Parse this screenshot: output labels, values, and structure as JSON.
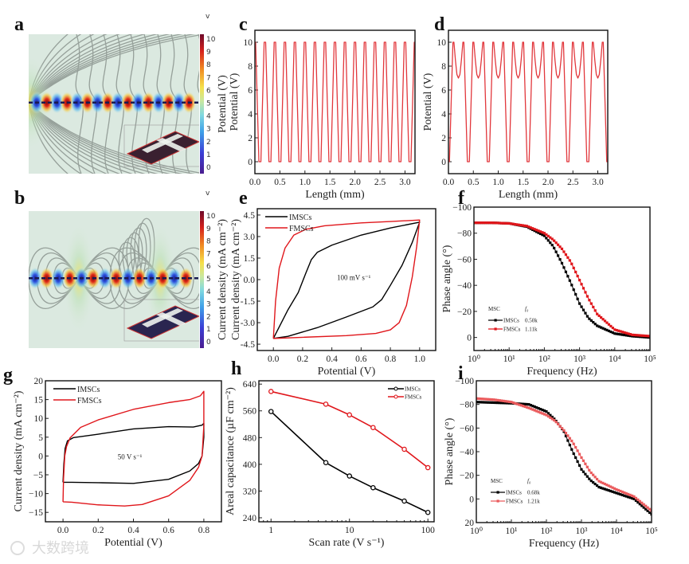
{
  "panel_labels": [
    "a",
    "b",
    "c",
    "d",
    "e",
    "f",
    "g",
    "h",
    "i"
  ],
  "watermark": "大数跨境",
  "colors": {
    "imscs": "#000000",
    "fmscs": "#e0161b",
    "fmscs_light": "#ea5a5c",
    "wave": "#e2373c"
  },
  "chart_data": [
    {
      "id": "a",
      "type": "heatmap",
      "colorbar_unit": "v",
      "colorbar_label": "Potential (V)",
      "colorbar_ticks": [
        "0",
        "1",
        "2",
        "3",
        "4",
        "5",
        "6",
        "7",
        "8",
        "9",
        "10"
      ],
      "colorbar_range": [
        0,
        10
      ]
    },
    {
      "id": "b",
      "type": "heatmap",
      "colorbar_unit": "v",
      "colorbar_label": "Current density (mA cm⁻²)",
      "colorbar_ticks": [
        "0",
        "1",
        "2",
        "3",
        "4",
        "5",
        "6",
        "7",
        "8",
        "9",
        "10"
      ],
      "colorbar_range": [
        0,
        10
      ]
    },
    {
      "id": "c",
      "type": "line",
      "xlabel": "Length (mm)",
      "ylabel": "Potential (V)",
      "xlim": [
        0,
        3.2
      ],
      "ylim": [
        -1,
        11
      ],
      "xticks": [
        0,
        0.5,
        1,
        1.5,
        2,
        2.5,
        3
      ],
      "xtick_labels": [
        "0.0",
        "0.5",
        "1.0",
        "1.5",
        "2.0",
        "2.5",
        "3.0"
      ],
      "yticks": [
        0,
        2,
        4,
        6,
        8,
        10
      ],
      "ytick_labels": [
        "0",
        "2",
        "4",
        "6",
        "8",
        "10"
      ],
      "waveform": {
        "period": 0.2,
        "start": 0,
        "period_profile": [
          [
            -0.015,
            10
          ],
          [
            0.015,
            10
          ],
          [
            0.08,
            0
          ],
          [
            0.12,
            0
          ],
          [
            0.185,
            10
          ]
        ]
      }
    },
    {
      "id": "d",
      "type": "line",
      "xlabel": "Length (mm)",
      "ylabel": "Potential (V)",
      "xlim": [
        0,
        3.2
      ],
      "ylim": [
        -1,
        11
      ],
      "xticks": [
        0,
        0.5,
        1,
        1.5,
        2,
        2.5,
        3
      ],
      "xtick_labels": [
        "0.0",
        "0.5",
        "1.0",
        "1.5",
        "2.0",
        "2.5",
        "3.0"
      ],
      "yticks": [
        0,
        2,
        4,
        6,
        8,
        10
      ],
      "ytick_labels": [
        "0",
        "2",
        "4",
        "6",
        "8",
        "10"
      ],
      "waveform": {
        "period": 0.4,
        "start": 0,
        "period_profile": [
          [
            -0.02,
            0
          ],
          [
            0.02,
            0
          ],
          [
            0.09,
            10
          ],
          [
            0.11,
            10
          ],
          [
            0.14,
            8.5
          ],
          [
            0.17,
            7.3
          ],
          [
            0.2,
            7
          ],
          [
            0.23,
            7.3
          ],
          [
            0.26,
            8.5
          ],
          [
            0.29,
            10
          ],
          [
            0.31,
            10
          ],
          [
            0.38,
            0
          ]
        ]
      }
    },
    {
      "id": "e",
      "type": "line",
      "xlabel": "Potential (V)",
      "ylabel": "Current density (mA cm⁻²)",
      "xlim": [
        -0.11,
        1.11
      ],
      "ylim": [
        -4.94,
        4.94
      ],
      "xticks": [
        0,
        0.2,
        0.4,
        0.6,
        0.8,
        1.0
      ],
      "xtick_labels": [
        "0.0",
        "0.2",
        "0.4",
        "0.6",
        "0.8",
        "1.0"
      ],
      "yticks": [
        -4.5,
        -3,
        -1.5,
        0,
        1.5,
        3,
        4.5
      ],
      "ytick_labels": [
        "-4.5",
        "-3.0",
        "-1.5",
        "0.0",
        "1.5",
        "3.0",
        "4.5"
      ],
      "annotation": "100 mV s⁻¹",
      "legend": "top-left",
      "series": [
        {
          "name": "IMSCs",
          "color": "#000000",
          "points": [
            [
              0,
              -4.1
            ],
            [
              0.05,
              -3.1
            ],
            [
              0.1,
              -2.1
            ],
            [
              0.17,
              -0.9
            ],
            [
              0.22,
              0.4
            ],
            [
              0.26,
              1.4
            ],
            [
              0.3,
              1.9
            ],
            [
              0.4,
              2.4
            ],
            [
              0.6,
              3.1
            ],
            [
              0.8,
              3.6
            ],
            [
              1.0,
              4.0
            ],
            [
              0.95,
              2.6
            ],
            [
              0.88,
              1.0
            ],
            [
              0.8,
              -0.4
            ],
            [
              0.74,
              -1.4
            ],
            [
              0.68,
              -1.9
            ],
            [
              0.5,
              -2.6
            ],
            [
              0.3,
              -3.35
            ],
            [
              0.1,
              -3.95
            ],
            [
              0,
              -4.1
            ]
          ]
        },
        {
          "name": "FMSCs",
          "color": "#e0161b",
          "points": [
            [
              0,
              -4.1
            ],
            [
              0.015,
              -1.5
            ],
            [
              0.04,
              0.8
            ],
            [
              0.08,
              2.2
            ],
            [
              0.14,
              3.1
            ],
            [
              0.22,
              3.5
            ],
            [
              0.35,
              3.75
            ],
            [
              0.6,
              3.95
            ],
            [
              0.8,
              4.05
            ],
            [
              1.0,
              4.15
            ],
            [
              0.98,
              2.3
            ],
            [
              0.95,
              0.2
            ],
            [
              0.91,
              -1.8
            ],
            [
              0.86,
              -3.0
            ],
            [
              0.8,
              -3.5
            ],
            [
              0.7,
              -3.75
            ],
            [
              0.5,
              -3.9
            ],
            [
              0.2,
              -4.02
            ],
            [
              0,
              -4.1
            ]
          ]
        }
      ]
    },
    {
      "id": "f",
      "type": "scatter",
      "xlabel": "Frequency (Hz)",
      "ylabel": "Phase angle (°)",
      "xscale": "log",
      "xlim": [
        1,
        100000
      ],
      "ylim": [
        10,
        -100
      ],
      "xticks": [
        1,
        10,
        100,
        1000,
        10000,
        100000
      ],
      "xtick_labels": [
        "10⁰",
        "10¹",
        "10²",
        "10³",
        "10⁴",
        "10⁵"
      ],
      "yticks": [
        -100,
        -80,
        -60,
        -40,
        -20,
        0
      ],
      "ytick_labels": [
        "−100",
        "−80",
        "−60",
        "−40",
        "−20",
        "0"
      ],
      "legend_title": "MSC",
      "legend_col": "f₀",
      "legend": "bottom-left",
      "x": [
        1,
        3.16,
        10,
        31.6,
        100,
        178,
        316,
        562,
        1000,
        1778,
        3162,
        10000,
        31623,
        100000
      ],
      "series": [
        {
          "name": "IMSCs",
          "f0": "0.50k",
          "color": "#000000",
          "values": [
            -88,
            -88,
            -87.5,
            -85,
            -78,
            -70,
            -57,
            -42,
            -26,
            -15,
            -9,
            -3,
            -1,
            0
          ]
        },
        {
          "name": "FMSCs",
          "f0": "1.11k",
          "color": "#e0161b",
          "values": [
            -88,
            -88,
            -87.5,
            -85.5,
            -80,
            -75,
            -68,
            -58,
            -44,
            -30,
            -18,
            -6,
            -2,
            -1
          ]
        }
      ]
    },
    {
      "id": "g",
      "type": "line",
      "xlabel": "Potential (V)",
      "ylabel": "Current density (mA cm⁻²)",
      "xlim": [
        -0.1,
        0.9
      ],
      "ylim": [
        -17.5,
        20
      ],
      "xticks": [
        0,
        0.2,
        0.4,
        0.6,
        0.8
      ],
      "xtick_labels": [
        "0.0",
        "0.2",
        "0.4",
        "0.6",
        "0.8"
      ],
      "yticks": [
        -15,
        -10,
        -5,
        0,
        5,
        10,
        15,
        20
      ],
      "ytick_labels": [
        "−15",
        "−10",
        "−5",
        "0",
        "5",
        "10",
        "15",
        "20"
      ],
      "annotation": "50 V s⁻¹",
      "legend": "top-left",
      "series": [
        {
          "name": "IMSCs",
          "color": "#000000",
          "points": [
            [
              0,
              -7
            ],
            [
              0.005,
              -2
            ],
            [
              0.012,
              2
            ],
            [
              0.025,
              4
            ],
            [
              0.06,
              4.9
            ],
            [
              0.2,
              5.8
            ],
            [
              0.4,
              7.2
            ],
            [
              0.6,
              7.8
            ],
            [
              0.74,
              7.7
            ],
            [
              0.79,
              8.2
            ],
            [
              0.8,
              8.7
            ],
            [
              0.8,
              5
            ],
            [
              0.79,
              0
            ],
            [
              0.77,
              -2
            ],
            [
              0.72,
              -4
            ],
            [
              0.6,
              -6.2
            ],
            [
              0.4,
              -7.3
            ],
            [
              0.2,
              -7.1
            ],
            [
              0.05,
              -7
            ],
            [
              0,
              -7
            ]
          ]
        },
        {
          "name": "FMSCs",
          "color": "#e0161b",
          "points": [
            [
              0,
              -12.2
            ],
            [
              0.003,
              -6
            ],
            [
              0.01,
              0
            ],
            [
              0.02,
              2.5
            ],
            [
              0.04,
              4.8
            ],
            [
              0.1,
              7.6
            ],
            [
              0.2,
              9.6
            ],
            [
              0.4,
              12.4
            ],
            [
              0.6,
              14.2
            ],
            [
              0.72,
              15
            ],
            [
              0.78,
              16
            ],
            [
              0.8,
              17.2
            ],
            [
              0.8,
              8
            ],
            [
              0.79,
              0
            ],
            [
              0.77,
              -3
            ],
            [
              0.72,
              -6.5
            ],
            [
              0.6,
              -10.6
            ],
            [
              0.45,
              -12.9
            ],
            [
              0.35,
              -13.3
            ],
            [
              0.2,
              -13
            ],
            [
              0.05,
              -12.3
            ],
            [
              0,
              -12.2
            ]
          ]
        }
      ]
    },
    {
      "id": "h",
      "type": "line",
      "xlabel": "Scan rate (V s⁻¹)",
      "ylabel": "Areal capacitance (µF cm⁻²)",
      "xscale": "log",
      "xlim": [
        0.7,
        120
      ],
      "ylim": [
        228,
        650
      ],
      "xticks": [
        1,
        10,
        100
      ],
      "xtick_labels": [
        "1",
        "10",
        "100"
      ],
      "yticks": [
        240,
        320,
        400,
        480,
        560,
        640
      ],
      "ytick_labels": [
        "240",
        "320",
        "400",
        "480",
        "560",
        "640"
      ],
      "legend": "top-right",
      "x": [
        1,
        5,
        10,
        20,
        50,
        100
      ],
      "series": [
        {
          "name": "IMSCs",
          "color": "#000000",
          "values": [
            558,
            405,
            365,
            330,
            290,
            256
          ]
        },
        {
          "name": "FMSCs",
          "color": "#e0161b",
          "values": [
            618,
            580,
            548,
            510,
            445,
            390
          ]
        }
      ]
    },
    {
      "id": "i",
      "type": "scatter",
      "xlabel": "Frequency (Hz)",
      "ylabel": "Phase angle (°)",
      "xscale": "log",
      "xlim": [
        1,
        100000
      ],
      "ylim": [
        20,
        -100
      ],
      "xticks": [
        1,
        10,
        100,
        1000,
        10000,
        100000
      ],
      "xtick_labels": [
        "10⁰",
        "10¹",
        "10²",
        "10³",
        "10⁴",
        "10⁵"
      ],
      "yticks": [
        -100,
        -80,
        -60,
        -40,
        -20,
        0,
        20
      ],
      "ytick_labels": [
        "−100",
        "−80",
        "−60",
        "−40",
        "−20",
        "0",
        "20"
      ],
      "legend_title": "MSC",
      "legend_col": "f₀",
      "legend": "bottom-left",
      "x": [
        1,
        3.16,
        10,
        31.6,
        100,
        178,
        316,
        562,
        1000,
        1778,
        3162,
        10000,
        31623,
        100000
      ],
      "series": [
        {
          "name": "IMSCs",
          "f0": "0.68k",
          "color": "#000000",
          "values": [
            -82,
            -81.5,
            -81,
            -80,
            -74,
            -67,
            -57,
            -40,
            -25,
            -16,
            -10,
            -5,
            0,
            13
          ]
        },
        {
          "name": "FMSCs",
          "f0": "1.21k",
          "color": "#ea5a5c",
          "values": [
            -85,
            -84,
            -82,
            -77,
            -71,
            -66,
            -58,
            -48,
            -35,
            -23,
            -15,
            -8,
            -2,
            10
          ]
        }
      ]
    }
  ]
}
